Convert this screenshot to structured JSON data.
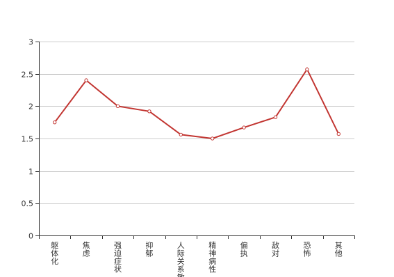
{
  "chart_data": {
    "type": "line",
    "categories": [
      "躯体化",
      "焦虑",
      "强迫症状",
      "抑郁",
      "人际关系敏感",
      "精神病性",
      "偏执",
      "敌对",
      "恐怖",
      "其他"
    ],
    "series": [
      {
        "values": [
          1.75,
          2.4,
          2.0,
          1.92,
          1.56,
          1.5,
          1.67,
          1.83,
          2.57,
          1.57
        ]
      }
    ],
    "ylim": [
      0,
      3
    ],
    "yticks": [
      "0",
      "0.5",
      "1",
      "1.5",
      "2",
      "2.5",
      "3"
    ],
    "grid": true,
    "legend": "none",
    "colors": {
      "line": "#c23531"
    }
  }
}
